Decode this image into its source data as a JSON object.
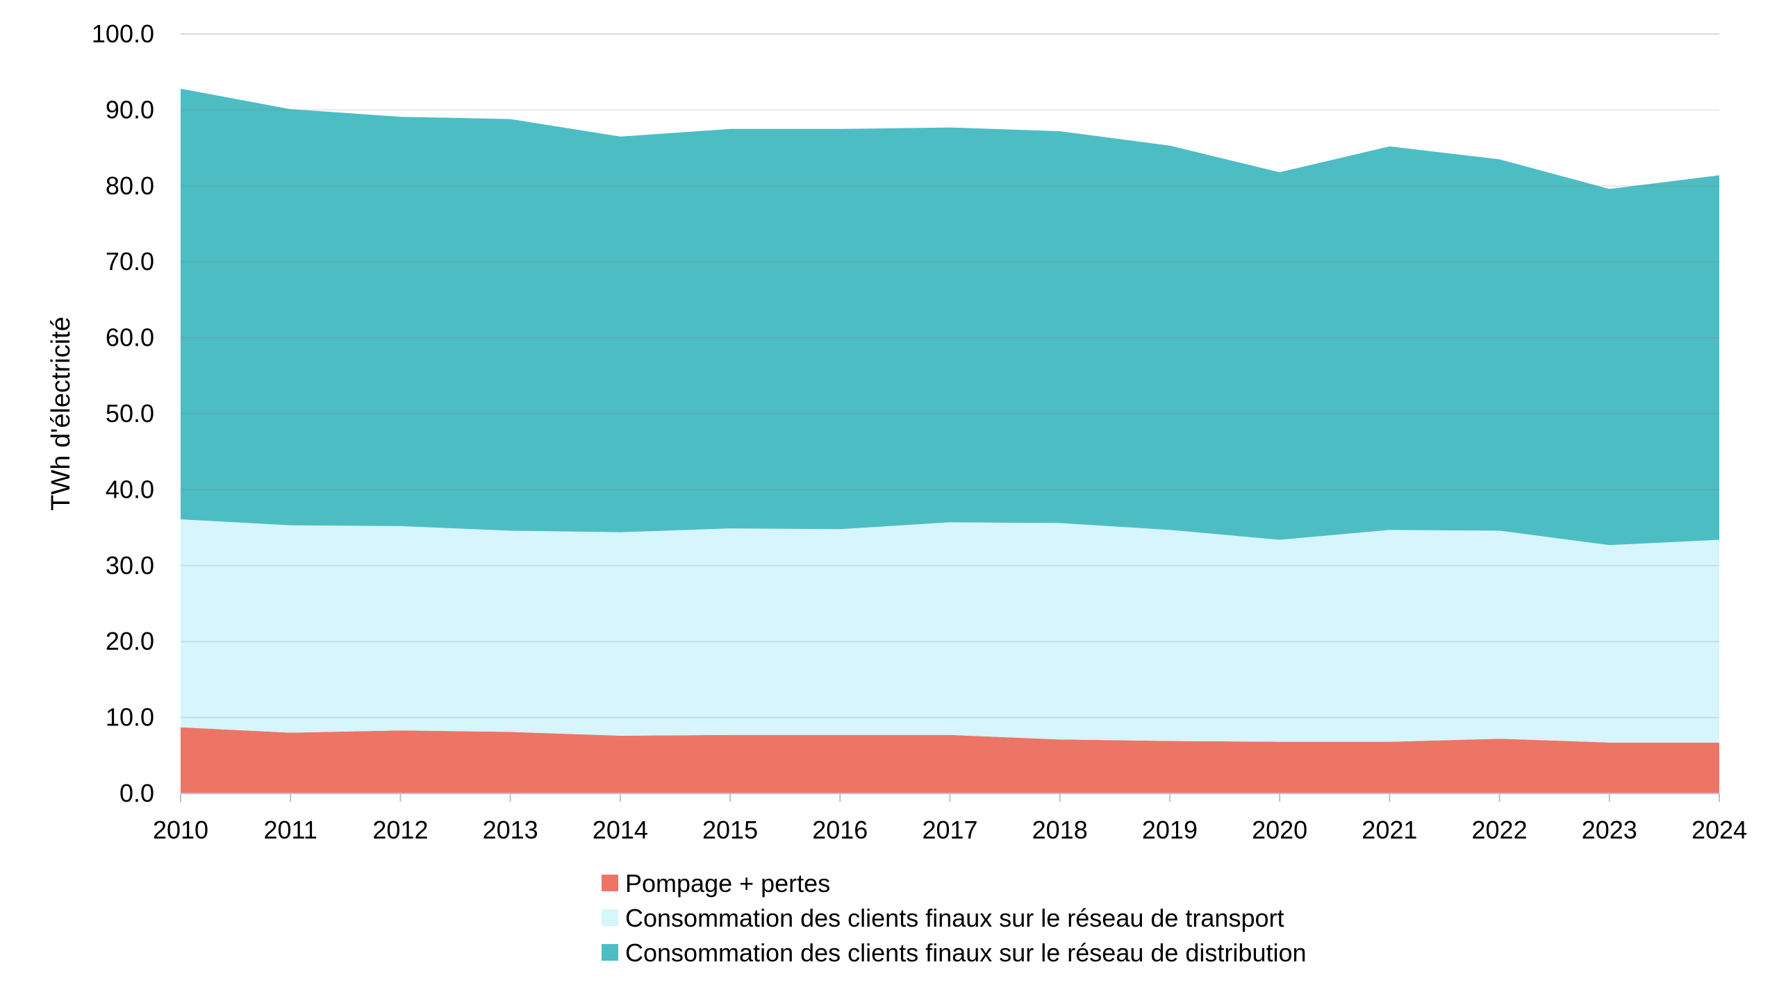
{
  "chart_data": {
    "type": "area",
    "stacked": true,
    "title": "",
    "xlabel": "",
    "ylabel": "TWh d'électricité",
    "x": [
      "2010",
      "2011",
      "2012",
      "2013",
      "2014",
      "2015",
      "2016",
      "2017",
      "2018",
      "2019",
      "2020",
      "2021",
      "2022",
      "2023",
      "2024"
    ],
    "ylim": [
      0,
      100
    ],
    "yticks": [
      "0.0",
      "10.0",
      "20.0",
      "30.0",
      "40.0",
      "50.0",
      "60.0",
      "70.0",
      "80.0",
      "90.0",
      "100.0"
    ],
    "grid": true,
    "legend_position": "bottom",
    "series": [
      {
        "name": "Pompage + pertes",
        "color": "#ed7565",
        "values": [
          8.7,
          8.0,
          8.3,
          8.1,
          7.6,
          7.7,
          7.7,
          7.7,
          7.1,
          6.9,
          6.8,
          6.8,
          7.2,
          6.7,
          6.7
        ]
      },
      {
        "name": "Consommation des clients finaux sur le réseau de transport",
        "color": "#d6f5fc",
        "values": [
          27.4,
          27.3,
          26.9,
          26.5,
          26.8,
          27.2,
          27.1,
          28.0,
          28.5,
          27.8,
          26.6,
          27.9,
          27.4,
          26.0,
          26.7
        ]
      },
      {
        "name": "Consommation des clients finaux sur le réseau de distribution",
        "color": "#4dbdc4",
        "values": [
          56.7,
          54.8,
          53.9,
          54.2,
          52.1,
          52.6,
          52.7,
          52.0,
          51.6,
          50.6,
          48.4,
          50.5,
          48.9,
          46.9,
          48.0
        ]
      }
    ]
  }
}
